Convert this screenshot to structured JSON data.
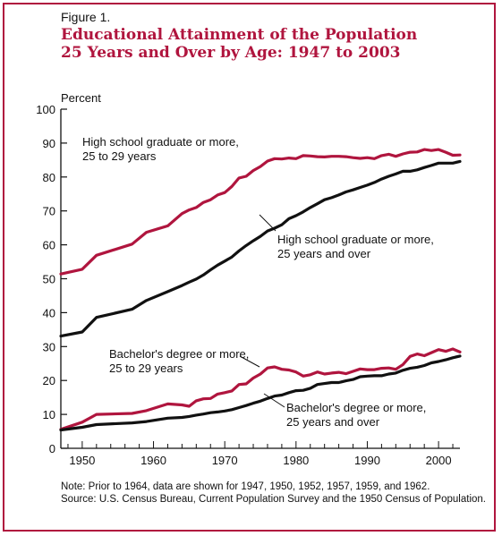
{
  "figure": {
    "label": "Figure 1.",
    "title_line1": "Educational Attainment of the Population",
    "title_line2": "25 Years and Over by Age:  1947 to 2003"
  },
  "chart_data": {
    "type": "line",
    "ylabel": "Percent",
    "xlabel": "",
    "xlim": [
      1947,
      2003
    ],
    "ylim": [
      0,
      100
    ],
    "x_ticks": [
      "1950",
      "1960",
      "1970",
      "1980",
      "1990",
      "2000"
    ],
    "y_ticks": [
      "0",
      "10",
      "20",
      "30",
      "40",
      "50",
      "60",
      "70",
      "80",
      "90",
      "100"
    ],
    "grid": false,
    "colors": {
      "age_25_29": "#b0153e",
      "age_25_over": "#111111"
    },
    "series": [
      {
        "label_line1": "High school graduate or more,",
        "label_line2": "25 to 29 years",
        "group": "age_25_29",
        "x": [
          1947,
          1950,
          1952,
          1957,
          1959,
          1962,
          1964,
          1965,
          1966,
          1967,
          1968,
          1969,
          1970,
          1971,
          1972,
          1973,
          1974,
          1975,
          1976,
          1977,
          1978,
          1979,
          1980,
          1981,
          1982,
          1983,
          1984,
          1985,
          1986,
          1987,
          1988,
          1989,
          1990,
          1991,
          1992,
          1993,
          1994,
          1995,
          1996,
          1997,
          1998,
          1999,
          2000,
          2001,
          2002,
          2003
        ],
        "values": [
          51.4,
          52.8,
          56.9,
          60.2,
          63.7,
          65.6,
          69.2,
          70.3,
          71.0,
          72.5,
          73.3,
          74.7,
          75.4,
          77.2,
          79.7,
          80.2,
          81.9,
          83.1,
          84.7,
          85.4,
          85.3,
          85.6,
          85.4,
          86.3,
          86.2,
          86.0,
          85.9,
          86.1,
          86.1,
          86.0,
          85.7,
          85.5,
          85.7,
          85.4,
          86.3,
          86.7,
          86.1,
          86.8,
          87.3,
          87.4,
          88.1,
          87.8,
          88.1,
          87.3,
          86.4,
          86.5
        ]
      },
      {
        "label_line1": "High school graduate or more,",
        "label_line2": "25 years and over",
        "group": "age_25_over",
        "x": [
          1947,
          1950,
          1952,
          1957,
          1959,
          1962,
          1964,
          1965,
          1966,
          1967,
          1968,
          1969,
          1970,
          1971,
          1972,
          1973,
          1974,
          1975,
          1976,
          1977,
          1978,
          1979,
          1980,
          1981,
          1982,
          1983,
          1984,
          1985,
          1986,
          1987,
          1988,
          1989,
          1990,
          1991,
          1992,
          1993,
          1994,
          1995,
          1996,
          1997,
          1998,
          1999,
          2000,
          2001,
          2002,
          2003
        ],
        "values": [
          33.1,
          34.3,
          38.6,
          41.0,
          43.6,
          46.2,
          48.0,
          49.0,
          49.9,
          51.1,
          52.6,
          54.0,
          55.2,
          56.4,
          58.2,
          59.8,
          61.2,
          62.5,
          64.1,
          64.9,
          65.9,
          67.7,
          68.6,
          69.7,
          71.0,
          72.1,
          73.3,
          73.9,
          74.7,
          75.6,
          76.2,
          76.9,
          77.6,
          78.4,
          79.4,
          80.2,
          80.9,
          81.7,
          81.7,
          82.1,
          82.8,
          83.4,
          84.1,
          84.1,
          84.1,
          84.6
        ]
      },
      {
        "label_line1": "Bachelor's degree or more,",
        "label_line2": "25 to 29 years",
        "group": "age_25_29",
        "x": [
          1947,
          1950,
          1952,
          1957,
          1959,
          1962,
          1964,
          1965,
          1966,
          1967,
          1968,
          1969,
          1970,
          1971,
          1972,
          1973,
          1974,
          1975,
          1976,
          1977,
          1978,
          1979,
          1980,
          1981,
          1982,
          1983,
          1984,
          1985,
          1986,
          1987,
          1988,
          1989,
          1990,
          1991,
          1992,
          1993,
          1994,
          1995,
          1996,
          1997,
          1998,
          1999,
          2000,
          2001,
          2002,
          2003
        ],
        "values": [
          5.6,
          7.7,
          10.0,
          10.3,
          11.1,
          13.1,
          12.8,
          12.4,
          14.0,
          14.6,
          14.7,
          16.0,
          16.4,
          16.9,
          18.8,
          19.0,
          20.7,
          21.9,
          23.7,
          24.0,
          23.3,
          23.1,
          22.5,
          21.3,
          21.7,
          22.5,
          21.9,
          22.2,
          22.4,
          22.0,
          22.7,
          23.4,
          23.2,
          23.2,
          23.6,
          23.7,
          23.3,
          24.7,
          27.1,
          27.8,
          27.3,
          28.2,
          29.1,
          28.6,
          29.3,
          28.4
        ]
      },
      {
        "label_line1": "Bachelor's degree or more,",
        "label_line2": "25 years and over",
        "group": "age_25_over",
        "x": [
          1947,
          1950,
          1952,
          1957,
          1959,
          1962,
          1964,
          1965,
          1966,
          1967,
          1968,
          1969,
          1970,
          1971,
          1972,
          1973,
          1974,
          1975,
          1976,
          1977,
          1978,
          1979,
          1980,
          1981,
          1982,
          1983,
          1984,
          1985,
          1986,
          1987,
          1988,
          1989,
          1990,
          1991,
          1992,
          1993,
          1994,
          1995,
          1996,
          1997,
          1998,
          1999,
          2000,
          2001,
          2002,
          2003
        ],
        "values": [
          5.4,
          6.2,
          7.0,
          7.5,
          7.9,
          8.9,
          9.1,
          9.4,
          9.8,
          10.1,
          10.5,
          10.7,
          11.0,
          11.4,
          12.0,
          12.6,
          13.3,
          13.9,
          14.7,
          15.4,
          15.7,
          16.4,
          17.0,
          17.1,
          17.7,
          18.8,
          19.1,
          19.4,
          19.4,
          19.9,
          20.3,
          21.1,
          21.3,
          21.4,
          21.4,
          21.9,
          22.2,
          23.0,
          23.6,
          23.9,
          24.4,
          25.2,
          25.6,
          26.1,
          26.7,
          27.2
        ]
      }
    ]
  },
  "note": {
    "line1": "Note: Prior to 1964, data are shown for 1947, 1950, 1952, 1957, 1959, and 1962.",
    "line2": "Source:  U.S. Census Bureau, Current Population Survey and the 1950 Census of Population."
  }
}
